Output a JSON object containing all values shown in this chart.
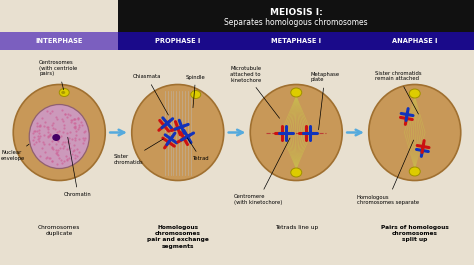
{
  "title_line1": "MEIOSIS I:",
  "title_line2": "Separates homologous chromosomes",
  "title_bg": "#111111",
  "title_text_color": "#ffffff",
  "header_bg_interphase": "#7b5fbf",
  "header_bg_rest": "#1a0a8a",
  "header_text_color": "#ffffff",
  "stages": [
    "INTERPHASE",
    "PROPHASE I",
    "METAPHASE I",
    "ANAPHASE I"
  ],
  "main_bg": "#e8e0d0",
  "cell_outer_color": "#c89858",
  "cell_outer_edge": "#a07030",
  "nucleus_fill": "#c08888",
  "nucleus_edge": "#905050",
  "chromatin_color": "#cc6699",
  "nucleolus_color": "#440066",
  "bottom_labels": [
    "Chromosomes\nduplicate",
    "Homologous\nchromosomes\npair and exchange\nsegments",
    "Tetrads line up",
    "Pairs of homologous\nchromosomes\nsplit up"
  ],
  "bottom_bold": [
    false,
    true,
    false,
    true
  ],
  "arrow_color": "#55aadd",
  "red_chrom": "#cc1111",
  "blue_chrom": "#1133bb",
  "centrosome_color": "#ddcc00",
  "spindle_color": "#d4c060",
  "spindle_line_color": "#c8b850"
}
